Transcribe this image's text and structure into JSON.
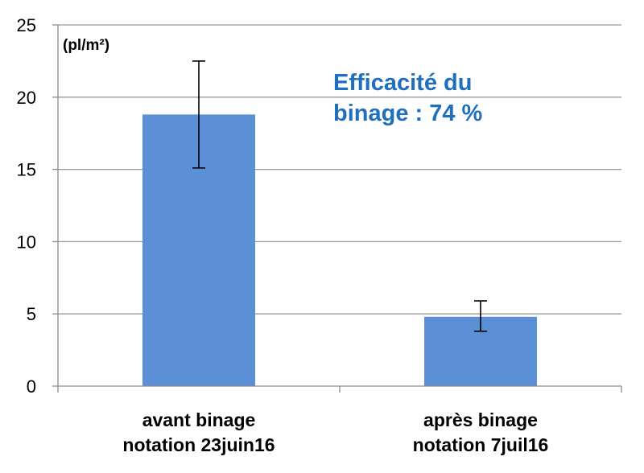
{
  "chart_data": {
    "type": "bar",
    "categories": [
      [
        "avant binage",
        "notation 23juin16"
      ],
      [
        "après binage",
        "notation 7juil16"
      ]
    ],
    "values": [
      18.8,
      4.8
    ],
    "error_bars": [
      {
        "low": 15.1,
        "high": 22.5
      },
      {
        "low": 3.8,
        "high": 5.9
      }
    ],
    "ylabel": "(pl/m²)",
    "ylim": [
      0,
      25
    ],
    "yticks": [
      "0",
      "5",
      "10",
      "15",
      "20",
      "25"
    ],
    "grid": true,
    "bar_color": "#5B8FD6",
    "annotation": {
      "lines": [
        "Efficacité du",
        "binage : 74 %"
      ],
      "color": "#1F6FBF"
    }
  }
}
